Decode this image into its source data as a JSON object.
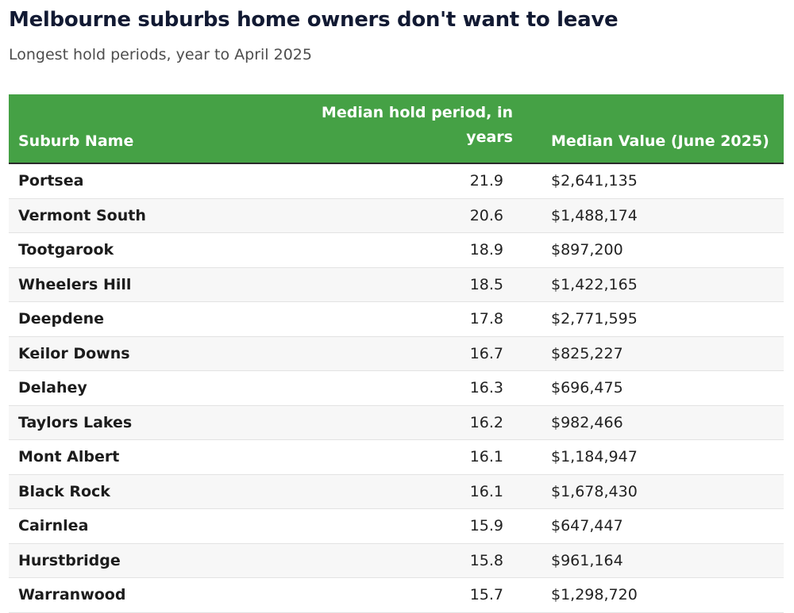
{
  "header": {
    "title": "Melbourne suburbs home owners don't want to leave",
    "subtitle": "Longest hold periods, year to April 2025"
  },
  "chart_data": {
    "type": "table",
    "columns": [
      "Suburb Name",
      "Median hold period, in years",
      "Median Value (June 2025)"
    ],
    "rows": [
      {
        "suburb": "Portsea",
        "hold": "21.9",
        "value": "$2,641,135"
      },
      {
        "suburb": "Vermont South",
        "hold": "20.6",
        "value": "$1,488,174"
      },
      {
        "suburb": "Tootgarook",
        "hold": "18.9",
        "value": "$897,200"
      },
      {
        "suburb": "Wheelers Hill",
        "hold": "18.5",
        "value": "$1,422,165"
      },
      {
        "suburb": "Deepdene",
        "hold": "17.8",
        "value": "$2,771,595"
      },
      {
        "suburb": "Keilor Downs",
        "hold": "16.7",
        "value": "$825,227"
      },
      {
        "suburb": "Delahey",
        "hold": "16.3",
        "value": "$696,475"
      },
      {
        "suburb": "Taylors Lakes",
        "hold": "16.2",
        "value": "$982,466"
      },
      {
        "suburb": "Mont Albert",
        "hold": "16.1",
        "value": "$1,184,947"
      },
      {
        "suburb": "Black Rock",
        "hold": "16.1",
        "value": "$1,678,430"
      },
      {
        "suburb": "Cairnlea",
        "hold": "15.9",
        "value": "$647,447"
      },
      {
        "suburb": "Hurstbridge",
        "hold": "15.8",
        "value": "$961,164"
      },
      {
        "suburb": "Warranwood",
        "hold": "15.7",
        "value": "$1,298,720"
      }
    ]
  },
  "colors": {
    "header_bg": "#45a145",
    "header_text": "#ffffff",
    "title_text": "#121a33"
  }
}
